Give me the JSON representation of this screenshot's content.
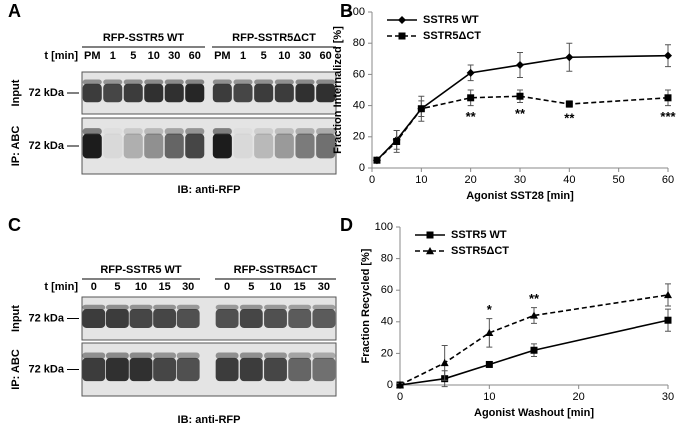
{
  "panels": [
    "A",
    "B",
    "C",
    "D"
  ],
  "blots": [
    {
      "groups": [
        "RFP-SSTR5 WT",
        "RFP-SSTR5ΔCT"
      ],
      "time_label": "t [min]",
      "lanes": [
        "PM",
        "1",
        "5",
        "10",
        "30",
        "60",
        "PM",
        "1",
        "5",
        "10",
        "30",
        "60"
      ],
      "rows": [
        "Input",
        "IP: ABC"
      ],
      "marker": [
        "72 kDa",
        "72 kDa"
      ],
      "footer": "IB: anti-RFP"
    },
    {
      "groups": [
        "RFP-SSTR5 WT",
        "RFP-SSTR5ΔCT"
      ],
      "time_label": "t [min]",
      "lanes": [
        "0",
        "5",
        "10",
        "15",
        "30",
        "0",
        "5",
        "10",
        "15",
        "30"
      ],
      "rows": [
        "Input",
        "IP: ABC"
      ],
      "marker": [
        "72 kDa",
        "72 kDa"
      ],
      "footer": "IB: anti-RFP"
    }
  ],
  "chart_data": [
    {
      "type": "line",
      "x_label": "Agonist SST28 [min]",
      "y_label": "Fraction Internalized [%]",
      "x": [
        1,
        5,
        10,
        20,
        30,
        40,
        60
      ],
      "xlim": [
        0,
        60
      ],
      "xticks": [
        0,
        10,
        20,
        30,
        40,
        50,
        60
      ],
      "ylim": [
        0,
        100
      ],
      "yticks": [
        0,
        20,
        40,
        60,
        80,
        100
      ],
      "legend": "upper left",
      "series": [
        {
          "name": "SSTR5 WT",
          "color": "#000000",
          "marker": "diamond",
          "dashed": false,
          "values": [
            5,
            18,
            38,
            61,
            66,
            71,
            72
          ],
          "errors": [
            1,
            6,
            8,
            5,
            8,
            9,
            7
          ]
        },
        {
          "name": "SSTR5ΔCT",
          "color": "#000000",
          "marker": "square",
          "dashed": true,
          "values": [
            5,
            17,
            38,
            45,
            46,
            41,
            45
          ],
          "errors": [
            1,
            7,
            5,
            5,
            4,
            2,
            5
          ]
        }
      ],
      "annotations": [
        {
          "x": 20,
          "text": "**"
        },
        {
          "x": 30,
          "text": "**"
        },
        {
          "x": 40,
          "text": "**"
        },
        {
          "x": 60,
          "text": "***"
        }
      ]
    },
    {
      "type": "line",
      "x_label": "Agonist Washout [min]",
      "y_label": "Fraction Recycled [%]",
      "x": [
        0,
        5,
        10,
        15,
        30
      ],
      "xlim": [
        0,
        30
      ],
      "xticks": [
        0,
        10,
        20,
        30
      ],
      "ylim": [
        0,
        100
      ],
      "yticks": [
        0,
        20,
        40,
        60,
        80,
        100
      ],
      "legend": "upper left",
      "series": [
        {
          "name": "SSTR5 WT",
          "color": "#000000",
          "marker": "square",
          "dashed": false,
          "values": [
            0,
            4,
            13,
            22,
            41
          ],
          "errors": [
            1,
            5,
            1,
            4,
            7
          ]
        },
        {
          "name": "SSTR5ΔCT",
          "color": "#000000",
          "marker": "triangle",
          "dashed": true,
          "values": [
            0,
            14,
            33,
            44,
            57
          ],
          "errors": [
            1,
            11,
            9,
            5,
            7
          ]
        }
      ],
      "annotations": [
        {
          "x": 10,
          "text": "*"
        },
        {
          "x": 15,
          "text": "**"
        }
      ]
    }
  ]
}
